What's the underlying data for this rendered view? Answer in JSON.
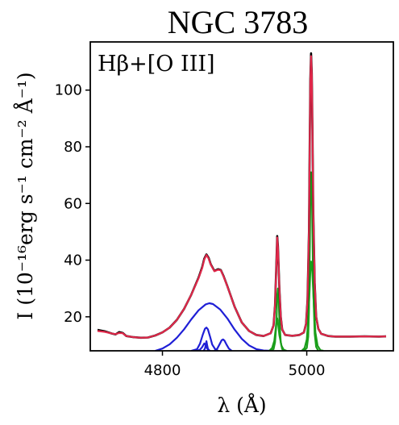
{
  "chart_data": {
    "type": "line",
    "title": "NGC 3783",
    "annotation": "Hβ+[O III]",
    "xlabel": "λ (Å)",
    "ylabel": "I (10⁻¹⁶erg s⁻¹ cm⁻² Å⁻¹)",
    "xlim": [
      4700,
      5120
    ],
    "ylim": [
      8,
      117
    ],
    "xticks": [
      4800,
      5000
    ],
    "yticks": [
      20,
      40,
      60,
      80,
      100
    ],
    "series": [
      {
        "color": "#000000",
        "role": "observed",
        "points": [
          [
            4710,
            15.4
          ],
          [
            4720,
            14.9
          ],
          [
            4730,
            14.1
          ],
          [
            4735,
            13.8
          ],
          [
            4740,
            14.6
          ],
          [
            4745,
            14.3
          ],
          [
            4750,
            13.2
          ],
          [
            4760,
            12.8
          ],
          [
            4770,
            12.6
          ],
          [
            4780,
            12.7
          ],
          [
            4790,
            13.4
          ],
          [
            4800,
            14.5
          ],
          [
            4810,
            16.2
          ],
          [
            4820,
            18.9
          ],
          [
            4830,
            22.8
          ],
          [
            4840,
            27.8
          ],
          [
            4850,
            33.8
          ],
          [
            4855,
            37.5
          ],
          [
            4858,
            40.5
          ],
          [
            4861,
            42.0
          ],
          [
            4864,
            40.8
          ],
          [
            4867,
            38.5
          ],
          [
            4872,
            36.2
          ],
          [
            4877,
            36.8
          ],
          [
            4881,
            36.5
          ],
          [
            4885,
            34.2
          ],
          [
            4890,
            30.8
          ],
          [
            4900,
            23.6
          ],
          [
            4910,
            18.0
          ],
          [
            4920,
            15.0
          ],
          [
            4930,
            13.6
          ],
          [
            4940,
            13.2
          ],
          [
            4950,
            14.2
          ],
          [
            4954,
            17.0
          ],
          [
            4956,
            24.0
          ],
          [
            4958,
            40.0
          ],
          [
            4959,
            48.5
          ],
          [
            4960,
            45.0
          ],
          [
            4962,
            30.0
          ],
          [
            4964,
            20.0
          ],
          [
            4966,
            15.5
          ],
          [
            4970,
            13.6
          ],
          [
            4980,
            13.3
          ],
          [
            4990,
            13.6
          ],
          [
            4996,
            14.5
          ],
          [
            4999,
            17.5
          ],
          [
            5001,
            26.0
          ],
          [
            5003,
            50.0
          ],
          [
            5004,
            80.0
          ],
          [
            5005,
            104.0
          ],
          [
            5006,
            113.0
          ],
          [
            5007,
            106.0
          ],
          [
            5008,
            84.0
          ],
          [
            5009,
            58.0
          ],
          [
            5011,
            32.0
          ],
          [
            5013,
            20.0
          ],
          [
            5016,
            15.8
          ],
          [
            5020,
            14.0
          ],
          [
            5030,
            13.2
          ],
          [
            5040,
            13.0
          ],
          [
            5060,
            13.0
          ],
          [
            5080,
            13.1
          ],
          [
            5100,
            13.0
          ],
          [
            5110,
            13.1
          ]
        ]
      },
      {
        "color": "#e0284a",
        "role": "model",
        "points": [
          [
            4710,
            15.0
          ],
          [
            4720,
            14.7
          ],
          [
            4730,
            14.1
          ],
          [
            4735,
            13.9
          ],
          [
            4740,
            14.3
          ],
          [
            4745,
            14.2
          ],
          [
            4750,
            13.2
          ],
          [
            4760,
            12.8
          ],
          [
            4770,
            12.6
          ],
          [
            4780,
            12.7
          ],
          [
            4790,
            13.4
          ],
          [
            4800,
            14.5
          ],
          [
            4810,
            16.2
          ],
          [
            4820,
            18.9
          ],
          [
            4830,
            22.8
          ],
          [
            4840,
            27.8
          ],
          [
            4850,
            33.6
          ],
          [
            4855,
            37.2
          ],
          [
            4858,
            40.2
          ],
          [
            4861,
            41.8
          ],
          [
            4864,
            40.6
          ],
          [
            4867,
            38.4
          ],
          [
            4872,
            36.1
          ],
          [
            4877,
            36.6
          ],
          [
            4881,
            36.4
          ],
          [
            4885,
            34.1
          ],
          [
            4890,
            30.7
          ],
          [
            4900,
            23.6
          ],
          [
            4910,
            18.0
          ],
          [
            4920,
            15.0
          ],
          [
            4930,
            13.6
          ],
          [
            4940,
            13.2
          ],
          [
            4950,
            14.2
          ],
          [
            4954,
            17.0
          ],
          [
            4956,
            24.0
          ],
          [
            4958,
            39.5
          ],
          [
            4959,
            48.0
          ],
          [
            4960,
            44.5
          ],
          [
            4962,
            30.0
          ],
          [
            4964,
            20.0
          ],
          [
            4966,
            15.5
          ],
          [
            4970,
            13.6
          ],
          [
            4980,
            13.3
          ],
          [
            4990,
            13.6
          ],
          [
            4996,
            14.5
          ],
          [
            4999,
            17.5
          ],
          [
            5001,
            26.0
          ],
          [
            5003,
            50.0
          ],
          [
            5004,
            79.5
          ],
          [
            5005,
            103.5
          ],
          [
            5006,
            112.0
          ],
          [
            5007,
            105.5
          ],
          [
            5008,
            83.5
          ],
          [
            5009,
            57.5
          ],
          [
            5011,
            32.0
          ],
          [
            5013,
            20.0
          ],
          [
            5016,
            15.8
          ],
          [
            5020,
            14.0
          ],
          [
            5030,
            13.2
          ],
          [
            5040,
            13.0
          ],
          [
            5060,
            13.0
          ],
          [
            5080,
            13.1
          ],
          [
            5100,
            13.0
          ],
          [
            5110,
            13.1
          ]
        ]
      },
      {
        "color": "#1f1fd6",
        "role": "Hβ broad component",
        "points": [
          [
            4790,
            8.0
          ],
          [
            4800,
            8.8
          ],
          [
            4810,
            10.3
          ],
          [
            4820,
            12.6
          ],
          [
            4830,
            15.6
          ],
          [
            4840,
            19.1
          ],
          [
            4850,
            22.3
          ],
          [
            4860,
            24.4
          ],
          [
            4865,
            24.8
          ],
          [
            4870,
            24.5
          ],
          [
            4880,
            22.6
          ],
          [
            4890,
            19.4
          ],
          [
            4900,
            15.5
          ],
          [
            4910,
            12.2
          ],
          [
            4920,
            9.9
          ],
          [
            4930,
            8.6
          ],
          [
            4940,
            8.1
          ],
          [
            4950,
            8.0
          ]
        ]
      },
      {
        "color": "#1f1fd6",
        "role": "Hβ intermediate component",
        "points": [
          [
            4840,
            8.0
          ],
          [
            4848,
            8.6
          ],
          [
            4852,
            10.5
          ],
          [
            4856,
            13.8
          ],
          [
            4859,
            15.8
          ],
          [
            4861,
            16.2
          ],
          [
            4863,
            15.6
          ],
          [
            4866,
            13.0
          ],
          [
            4869,
            10.2
          ],
          [
            4873,
            8.6
          ],
          [
            4877,
            8.0
          ]
        ]
      },
      {
        "color": "#1f1fd6",
        "role": "Hβ intermediate component",
        "points": [
          [
            4872,
            8.0
          ],
          [
            4876,
            8.8
          ],
          [
            4879,
            10.2
          ],
          [
            4882,
            11.7
          ],
          [
            4884,
            12.0
          ],
          [
            4886,
            11.6
          ],
          [
            4889,
            10.1
          ],
          [
            4892,
            8.8
          ],
          [
            4896,
            8.0
          ]
        ]
      },
      {
        "color": "#1f1fd6",
        "role": "Hβ narrow component",
        "points": [
          [
            4848,
            8.0
          ],
          [
            4852,
            8.4
          ],
          [
            4855,
            9.3
          ],
          [
            4857,
            10.2
          ],
          [
            4858,
            10.6
          ],
          [
            4859,
            10.4
          ],
          [
            4861,
            9.4
          ],
          [
            4863,
            8.4
          ],
          [
            4866,
            8.0
          ]
        ]
      },
      {
        "color": "#1f1fd6",
        "role": "Hβ narrow component",
        "points": [
          [
            4857,
            8.0
          ],
          [
            4859,
            8.8
          ],
          [
            4860,
            10.0
          ],
          [
            4861,
            11.4
          ],
          [
            4862,
            10.0
          ],
          [
            4863,
            8.8
          ],
          [
            4865,
            8.0
          ]
        ]
      },
      {
        "color": "#1a9e1a",
        "role": "[O III] 4959 component",
        "points": [
          [
            4948,
            8.0
          ],
          [
            4952,
            9.0
          ],
          [
            4955,
            11.5
          ],
          [
            4957,
            16.0
          ],
          [
            4958,
            19.0
          ],
          [
            4959,
            19.5
          ],
          [
            4960,
            18.0
          ],
          [
            4962,
            13.5
          ],
          [
            4965,
            9.8
          ],
          [
            4968,
            8.4
          ],
          [
            4972,
            8.0
          ]
        ]
      },
      {
        "color": "#1a9e1a",
        "role": "[O III] 4959 component",
        "points": [
          [
            4950,
            8.0
          ],
          [
            4954,
            8.6
          ],
          [
            4956,
            11.0
          ],
          [
            4958,
            18.0
          ],
          [
            4959,
            27.5
          ],
          [
            4960,
            30.0
          ],
          [
            4961,
            27.0
          ],
          [
            4962,
            19.0
          ],
          [
            4964,
            11.0
          ],
          [
            4966,
            8.6
          ],
          [
            4970,
            8.0
          ]
        ]
      },
      {
        "color": "#1a9e1a",
        "role": "[O III] 5007 component",
        "points": [
          [
            4993,
            8.0
          ],
          [
            4997,
            9.0
          ],
          [
            5000,
            12.0
          ],
          [
            5002,
            19.0
          ],
          [
            5004,
            30.0
          ],
          [
            5005,
            36.0
          ],
          [
            5006,
            39.5
          ],
          [
            5007,
            39.0
          ],
          [
            5008,
            34.5
          ],
          [
            5010,
            23.5
          ],
          [
            5012,
            14.5
          ],
          [
            5015,
            9.8
          ],
          [
            5019,
            8.2
          ],
          [
            5023,
            8.0
          ]
        ]
      },
      {
        "color": "#1a9e1a",
        "role": "[O III] 5007 component",
        "points": [
          [
            4996,
            8.0
          ],
          [
            5000,
            9.0
          ],
          [
            5002,
            13.0
          ],
          [
            5003,
            22.0
          ],
          [
            5004,
            42.0
          ],
          [
            5005,
            62.0
          ],
          [
            5006,
            71.0
          ],
          [
            5007,
            66.0
          ],
          [
            5008,
            48.0
          ],
          [
            5009,
            30.0
          ],
          [
            5011,
            14.0
          ],
          [
            5013,
            9.4
          ],
          [
            5016,
            8.0
          ]
        ]
      }
    ]
  }
}
